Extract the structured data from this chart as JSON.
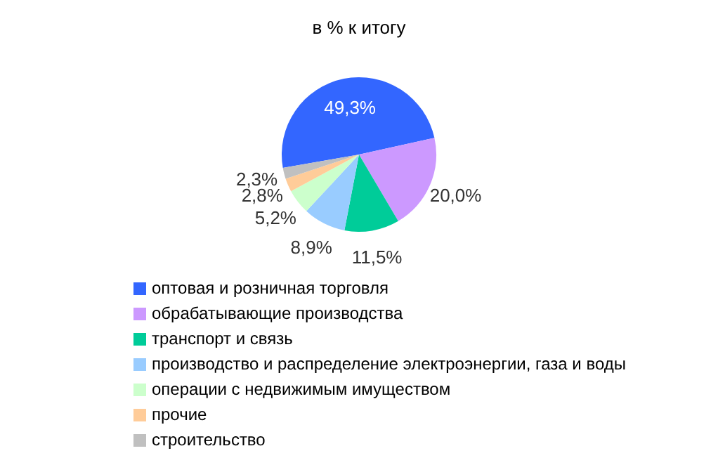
{
  "chart_data": {
    "type": "pie",
    "title": "в % к итогу",
    "categories": [
      "оптовая и розничная торговля",
      "обрабатывающие производства",
      "транспорт и связь",
      "производство и распределение электроэнергии, газа и воды",
      "операции с недвижимым имуществом",
      "прочие",
      "строительство"
    ],
    "values": [
      49.3,
      20.0,
      11.5,
      8.9,
      5.2,
      2.8,
      2.3
    ],
    "colors": [
      "#3366ff",
      "#cc99ff",
      "#00cc99",
      "#99ccff",
      "#ccffcc",
      "#ffcc99",
      "#c0c0c0"
    ],
    "value_labels": [
      "49,3%",
      "20,0%",
      "11,5%",
      "8,9%",
      "5,2%",
      "2,8%",
      "2,3%"
    ],
    "legend": "bottom"
  }
}
